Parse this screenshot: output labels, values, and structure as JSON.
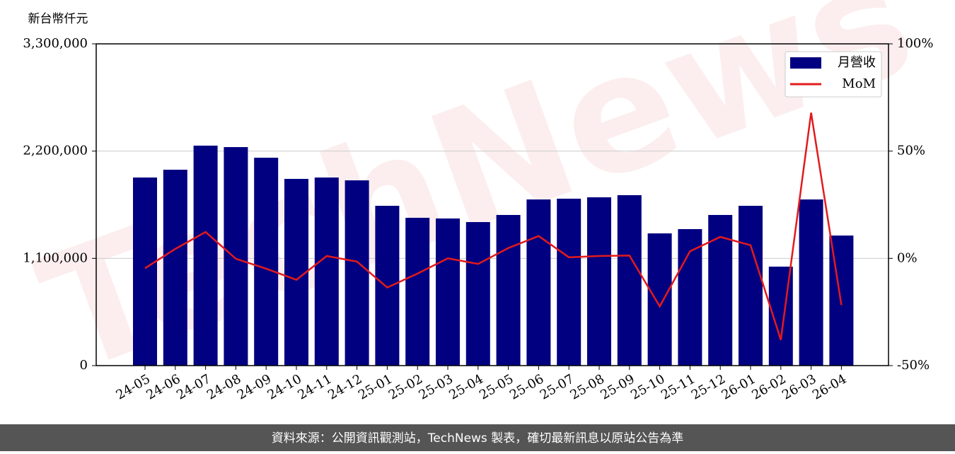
{
  "chart_data": {
    "type": "bar-line",
    "y_label": "新台幣仟元",
    "watermark": "TechNews",
    "source": "資料來源：公開資訊觀測站，TechNews 製表，確切最新訊息以原站公告為準",
    "categories": [
      "24-05",
      "24-06",
      "24-07",
      "24-08",
      "24-09",
      "24-10",
      "24-11",
      "24-12",
      "25-01",
      "25-02",
      "25-03",
      "25-04",
      "25-05",
      "25-06",
      "25-07",
      "25-08",
      "25-09",
      "25-10",
      "25-11",
      "25-12",
      "26-01",
      "26-02",
      "26-03",
      "26-04"
    ],
    "series": [
      {
        "name": "月營收",
        "color": "#000080",
        "type": "bar",
        "values": [
          1929000,
          2009000,
          2256000,
          2241000,
          2132000,
          1915000,
          1929000,
          1900000,
          1639000,
          1516000,
          1509000,
          1472000,
          1545000,
          1704000,
          1712000,
          1726000,
          1748000,
          1356000,
          1400000,
          1545000,
          1639000,
          1015000,
          1704000,
          1334000
        ]
      },
      {
        "name": "MoM",
        "color": "#e31a1c",
        "type": "line",
        "axis": "y2",
        "values": [
          -4.6,
          4.4,
          12.3,
          -0.2,
          -4.8,
          -10,
          1.1,
          -1.5,
          -13.6,
          -7.1,
          0,
          -2.6,
          4.8,
          10.4,
          0.5,
          1.1,
          1.3,
          -22.4,
          3.3,
          10,
          6.1,
          -38,
          67.9,
          -21.8
        ]
      }
    ],
    "ylim": [
      0,
      3300000
    ],
    "yticks": [
      0,
      {
        "value": 1100000,
        "label": "1,100,000"
      },
      {
        "value": 2200000,
        "label": "2,200,000"
      },
      {
        "value": 3300000,
        "label": "3,300,000"
      }
    ],
    "y2lim": [
      -50,
      100
    ],
    "y2ticks": [
      {
        "value": -50,
        "label": "-50%"
      },
      {
        "value": 0,
        "label": "0%"
      },
      {
        "value": 50,
        "label": "50%"
      },
      {
        "value": 100,
        "label": "100%"
      }
    ],
    "grid": true,
    "legend": "upper right"
  }
}
